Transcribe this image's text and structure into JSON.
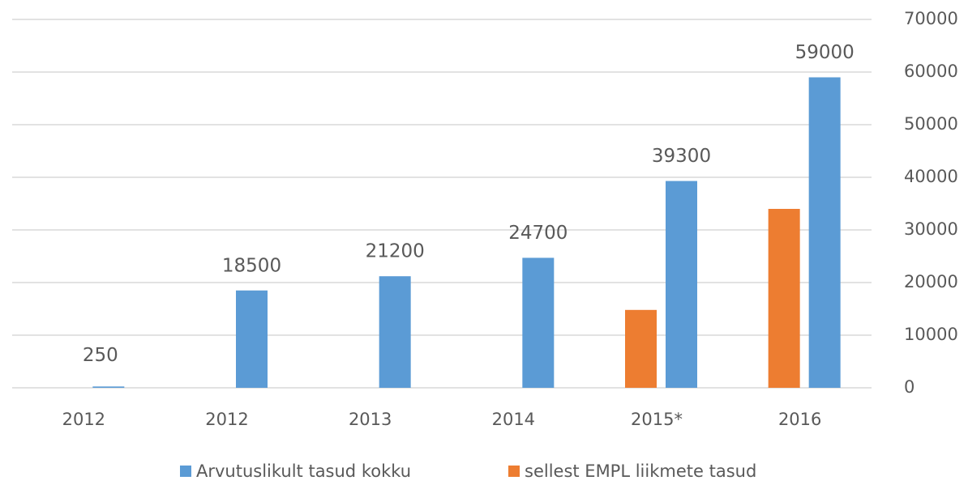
{
  "chart_data": {
    "type": "bar",
    "categories": [
      "2012",
      "2012",
      "2013",
      "2014",
      "2015*",
      "2016"
    ],
    "series": [
      {
        "name": "Arvutuslikult tasud kokku",
        "color": "#5b9bd5",
        "values": [
          250,
          18500,
          21200,
          24700,
          39300,
          59000
        ]
      },
      {
        "name": "sellest EMPL liikmete tasud",
        "color": "#ed7d31",
        "values": [
          null,
          null,
          null,
          null,
          14800,
          34000
        ]
      }
    ],
    "ylim": [
      0,
      70000
    ],
    "yticks": [
      0,
      10000,
      20000,
      30000,
      40000,
      50000,
      60000,
      70000
    ],
    "grid": true,
    "y_axis_side": "right",
    "legend": "bottom"
  }
}
